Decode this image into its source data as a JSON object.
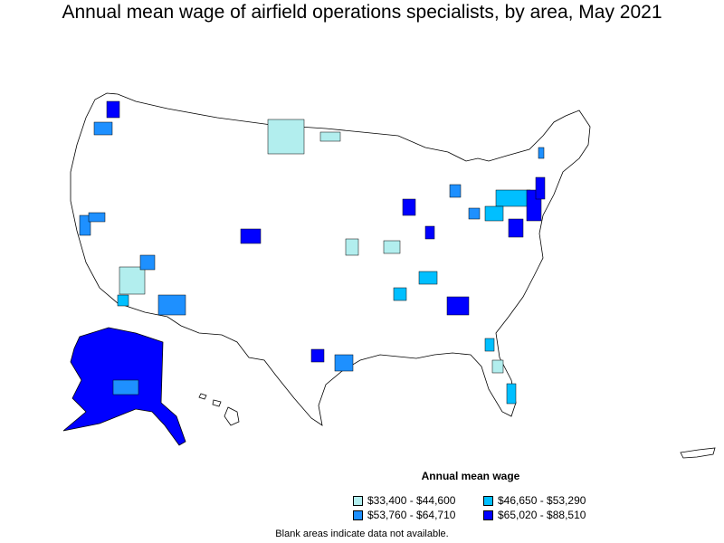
{
  "title": "Annual mean wage of airfield operations specialists, by area, May 2021",
  "legend": {
    "title": "Annual mean wage",
    "items": [
      {
        "label": "$33,400 - $44,600",
        "color": "#b2eeee"
      },
      {
        "label": "$46,650 - $53,290",
        "color": "#00bfff"
      },
      {
        "label": "$53,760 - $64,710",
        "color": "#1e90ff"
      },
      {
        "label": "$65,020 - $88,510",
        "color": "#0000ff"
      }
    ]
  },
  "note": "Blank areas indicate data not available.",
  "map_colors": {
    "stroke": "#000000",
    "blank": "#ffffff"
  }
}
